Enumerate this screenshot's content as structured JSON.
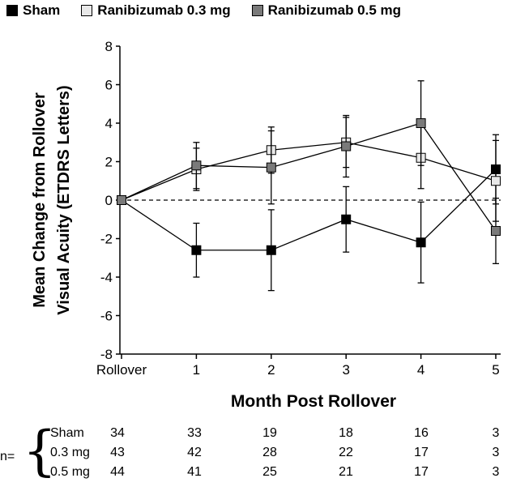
{
  "chart_data": {
    "type": "line",
    "title": "",
    "xlabel": "Month Post Rollover",
    "ylabel_lines": [
      "Mean Change from Rollover",
      "Visual Acuity (ETDRS Letters)"
    ],
    "categories": [
      "Rollover",
      "1",
      "2",
      "3",
      "4",
      "5"
    ],
    "ylim": [
      -8,
      8
    ],
    "yticks": [
      "-8",
      "-6",
      "-4",
      "-2",
      "0",
      "2",
      "4",
      "6",
      "8"
    ],
    "ytick_values": [
      -8,
      -6,
      -4,
      -2,
      0,
      2,
      4,
      6,
      8
    ],
    "reference_line": 0,
    "legend_position": "top",
    "series": [
      {
        "name": "Sham",
        "color": "#000000",
        "values": [
          0,
          -2.6,
          -2.6,
          -1.0,
          -2.2,
          1.6
        ],
        "err": [
          0,
          1.4,
          2.1,
          1.7,
          2.1,
          1.8
        ]
      },
      {
        "name": "Ranibizumab 0.3 mg",
        "color": "#e8e8e8",
        "values": [
          0,
          1.6,
          2.6,
          3.0,
          2.2,
          1.0
        ],
        "err": [
          0,
          1.1,
          1.2,
          1.3,
          1.6,
          2.1
        ]
      },
      {
        "name": "Ranibizumab 0.5 mg",
        "color": "#7a7a7a",
        "values": [
          0,
          1.8,
          1.7,
          2.8,
          4.0,
          -1.6
        ],
        "err": [
          0,
          1.2,
          1.9,
          1.6,
          2.2,
          1.7
        ]
      }
    ]
  },
  "n_table": {
    "label": "n=",
    "rows": [
      {
        "name": "Sham",
        "counts": [
          "34",
          "33",
          "19",
          "18",
          "16",
          "3"
        ]
      },
      {
        "name": "0.3 mg",
        "counts": [
          "43",
          "42",
          "28",
          "22",
          "17",
          "3"
        ]
      },
      {
        "name": "0.5 mg",
        "counts": [
          "44",
          "41",
          "25",
          "21",
          "17",
          "3"
        ]
      }
    ]
  }
}
